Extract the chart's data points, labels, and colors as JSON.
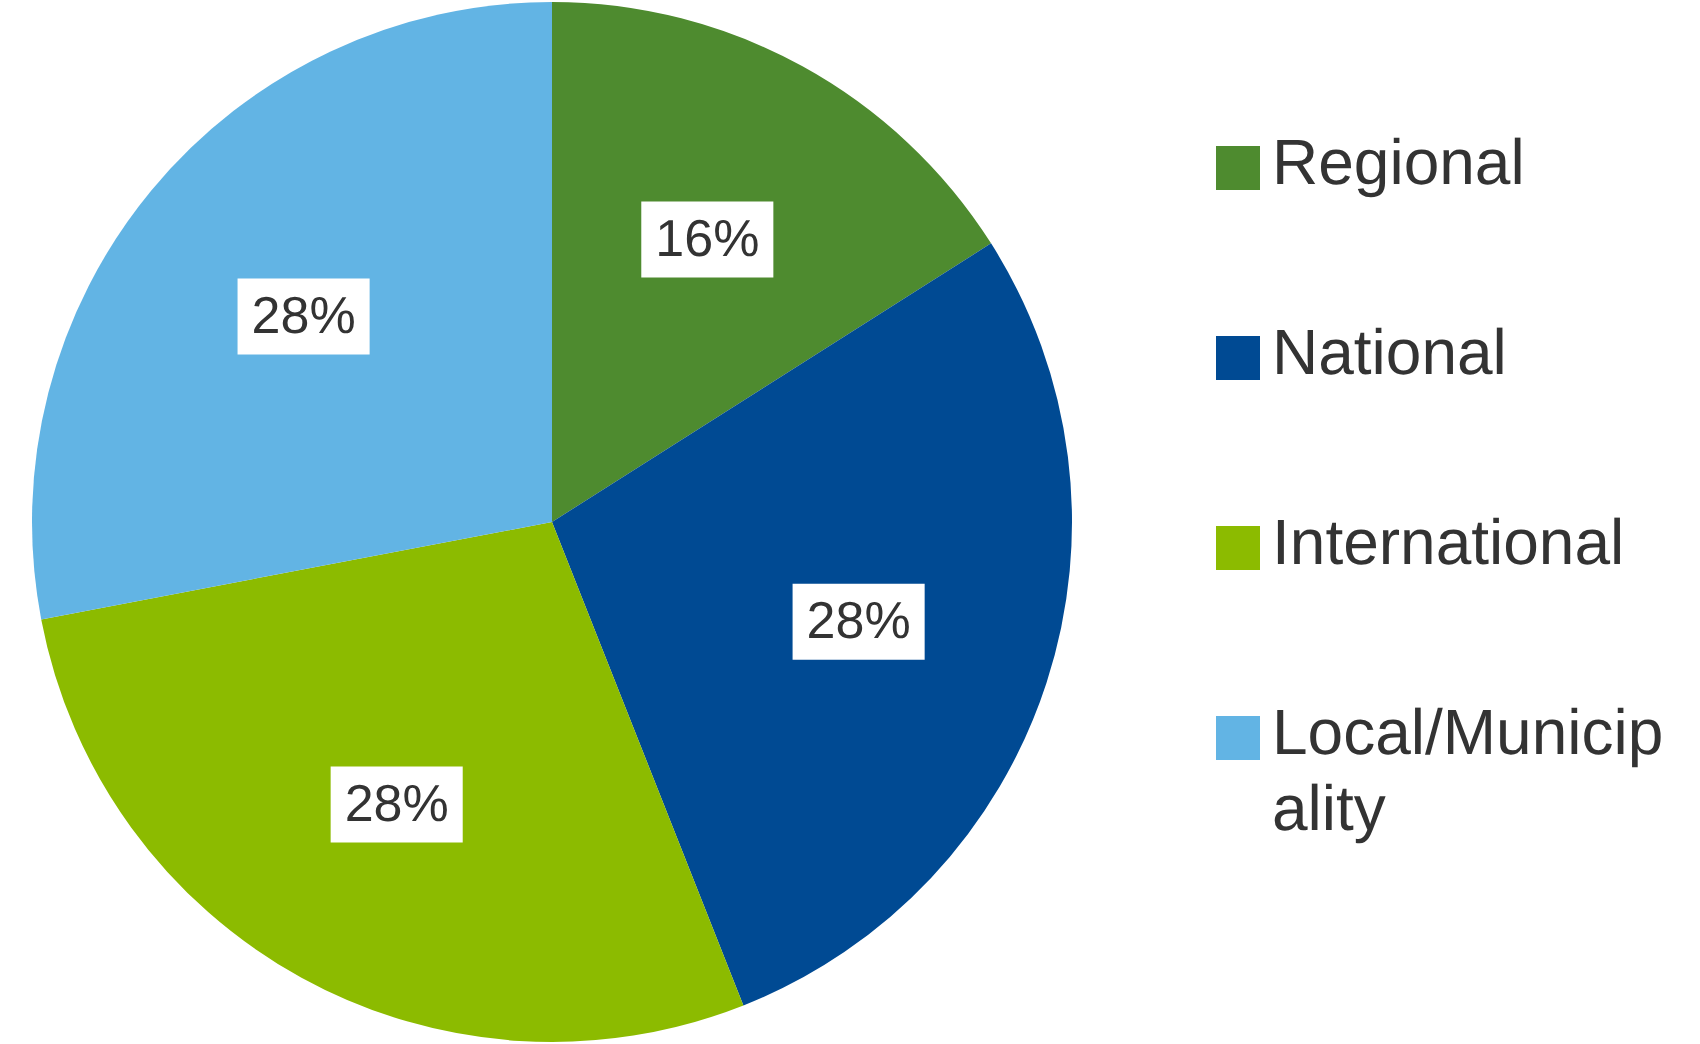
{
  "chart_data": {
    "type": "pie",
    "categories": [
      "Regional",
      "National",
      "International",
      "Local/Municipality"
    ],
    "values": [
      16,
      28,
      28,
      28
    ],
    "colors": [
      "#4e8b2f",
      "#004a93",
      "#8cbb00",
      "#62b4e4"
    ],
    "value_labels": [
      "16%",
      "28%",
      "28%",
      "28%"
    ],
    "legend": "right"
  }
}
